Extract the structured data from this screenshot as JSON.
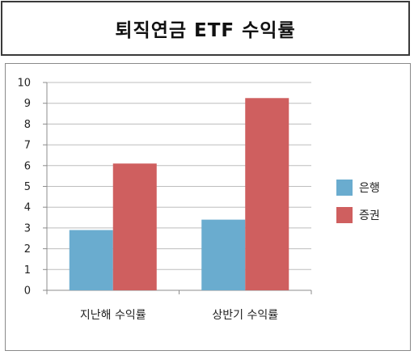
{
  "chart_data": {
    "type": "bar",
    "title": "퇴직연금 ETF 수익률",
    "categories": [
      "지난해 수익률",
      "상반기 수익률"
    ],
    "series": [
      {
        "name": "은행",
        "values": [
          2.9,
          3.4
        ],
        "color": "#6aaccf"
      },
      {
        "name": "증권",
        "values": [
          6.1,
          9.25
        ],
        "color": "#cf5f5f"
      }
    ],
    "xlabel": "",
    "ylabel": "",
    "ylim": [
      0,
      10
    ],
    "yticks": [
      0,
      1,
      2,
      3,
      4,
      5,
      6,
      7,
      8,
      9,
      10
    ],
    "grid": true,
    "legend_position": "right"
  }
}
